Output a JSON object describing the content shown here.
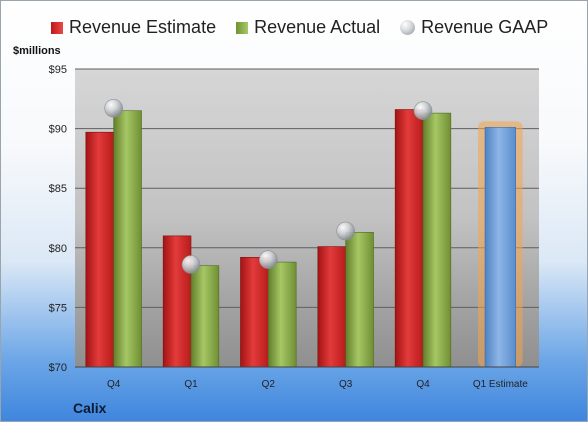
{
  "chart_data": {
    "type": "bar",
    "ylabel": "$millions",
    "ylim": [
      70,
      95
    ],
    "yticks": [
      70,
      75,
      80,
      85,
      90,
      95
    ],
    "ytick_labels": [
      "$70",
      "$75",
      "$80",
      "$85",
      "$90",
      "$95"
    ],
    "categories": [
      "Q4",
      "Q1",
      "Q2",
      "Q3",
      "Q4",
      "Q1 Estimate"
    ],
    "series": [
      {
        "name": "Revenue Estimate",
        "kind": "bar",
        "color": "#d42a2a",
        "values": [
          89.7,
          81.0,
          79.2,
          80.1,
          91.6,
          null
        ]
      },
      {
        "name": "Revenue Actual",
        "kind": "bar",
        "color": "#8fb24e",
        "values": [
          91.5,
          78.5,
          78.8,
          81.3,
          91.3,
          null
        ]
      },
      {
        "name": "Revenue GAAP",
        "kind": "marker",
        "color": "#b9bcc1",
        "values": [
          91.7,
          78.6,
          79.0,
          81.4,
          91.5,
          null
        ]
      }
    ],
    "forecast": {
      "category": "Q1 Estimate",
      "value": 90.1,
      "color": "#6f9fd8",
      "glow": "#f4a64a"
    },
    "grid": true,
    "legend_position": "top"
  },
  "company": "Calix"
}
